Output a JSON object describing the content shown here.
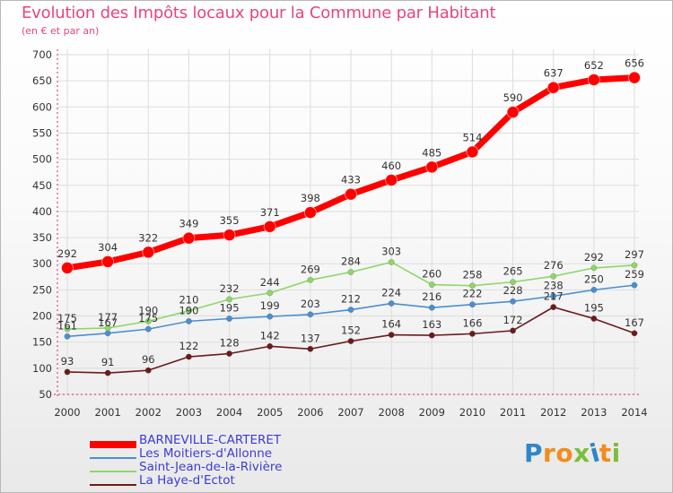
{
  "title": "Evolution des Impôts locaux pour la Commune par Habitant",
  "subtitle": "(en € et par an)",
  "colors": {
    "title": "#e8457a",
    "legend_text": "#3c3cd4",
    "axis": "#e8457a",
    "tick_text": "#333333",
    "grid": "#dddddd"
  },
  "logo": {
    "text": "Proxiti",
    "letter_colors": [
      "#2f86c8",
      "#f28c1e",
      "#f28c1e",
      "#7abf3c",
      "#2f86c8",
      "#f28c1e",
      "#7abf3c"
    ]
  },
  "chart_data": {
    "type": "line",
    "x": [
      2000,
      2001,
      2002,
      2003,
      2004,
      2005,
      2006,
      2007,
      2008,
      2009,
      2010,
      2011,
      2012,
      2013,
      2014
    ],
    "ylim": [
      50,
      700
    ],
    "yticks": [
      50,
      100,
      150,
      200,
      250,
      300,
      350,
      400,
      450,
      500,
      550,
      600,
      650,
      700
    ],
    "grid": true,
    "legend_position": "bottom-left",
    "series": [
      {
        "name": "BARNEVILLE-CARTERET",
        "color": "#ff0000",
        "values": [
          292,
          304,
          322,
          349,
          355,
          371,
          398,
          433,
          460,
          485,
          514,
          590,
          637,
          652,
          656
        ]
      },
      {
        "name": "Les Moitiers-d'Allonne",
        "color": "#4a8fd0",
        "values": [
          161,
          167,
          175,
          190,
          195,
          199,
          203,
          212,
          224,
          216,
          222,
          228,
          238,
          250,
          259
        ]
      },
      {
        "name": "Saint-Jean-de-la-Rivière",
        "color": "#8ed66a",
        "values": [
          175,
          177,
          190,
          210,
          232,
          244,
          269,
          284,
          303,
          260,
          258,
          265,
          276,
          292,
          297
        ]
      },
      {
        "name": "La Haye-d'Ectot",
        "color": "#6b1a1a",
        "values": [
          93,
          91,
          96,
          122,
          128,
          142,
          137,
          152,
          164,
          163,
          166,
          172,
          217,
          195,
          167
        ]
      }
    ]
  }
}
